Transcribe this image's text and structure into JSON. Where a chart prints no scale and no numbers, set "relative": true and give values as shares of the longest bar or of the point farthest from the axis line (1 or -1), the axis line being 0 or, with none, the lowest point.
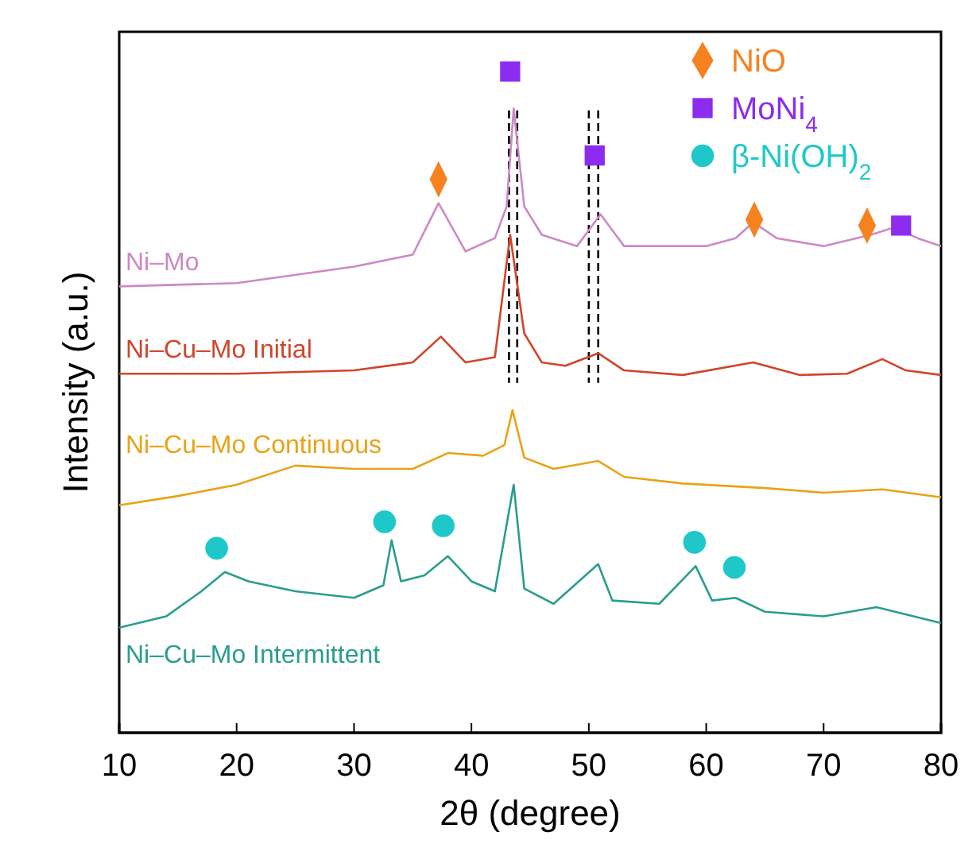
{
  "chart_data": {
    "type": "line",
    "relative": true,
    "xlabel": "2θ (degree)",
    "ylabel": "Intensity (a.u.)",
    "xlim": [
      10,
      80
    ],
    "xticks": [
      10,
      20,
      30,
      40,
      50,
      60,
      70,
      80
    ],
    "legend": "top right",
    "grid": false,
    "series": [
      {
        "name": "Ni–Mo",
        "color": "#cc8ac4",
        "x": [
          10,
          20,
          30,
          35,
          37.2,
          39.5,
          42,
          43,
          43.6,
          44.5,
          46,
          49,
          51,
          53,
          60,
          62.5,
          64,
          66,
          70,
          74,
          76,
          78,
          80
        ],
        "values": [
          0.675,
          0.68,
          0.705,
          0.723,
          0.801,
          0.728,
          0.748,
          0.796,
          0.944,
          0.796,
          0.753,
          0.736,
          0.784,
          0.736,
          0.736,
          0.748,
          0.772,
          0.748,
          0.736,
          0.753,
          0.764,
          0.748,
          0.736
        ]
      },
      {
        "name": "Ni–Cu–Mo Initial",
        "color": "#d0452a",
        "x": [
          10,
          20,
          30,
          35,
          37.4,
          39.5,
          42,
          43.3,
          44.5,
          46,
          48,
          50.8,
          53,
          58,
          64,
          68,
          72,
          75,
          77,
          80
        ],
        "values": [
          0.543,
          0.543,
          0.548,
          0.56,
          0.599,
          0.56,
          0.568,
          0.753,
          0.604,
          0.56,
          0.555,
          0.574,
          0.548,
          0.541,
          0.56,
          0.541,
          0.543,
          0.565,
          0.548,
          0.541
        ]
      },
      {
        "name": "Ni–Cu–Mo Continuous",
        "color": "#e8a317",
        "x": [
          10,
          15,
          20,
          25,
          30,
          35,
          38,
          41,
          42.8,
          43.5,
          44.5,
          47,
          50.8,
          53,
          58,
          65,
          70,
          75,
          80
        ],
        "values": [
          0.344,
          0.358,
          0.375,
          0.404,
          0.399,
          0.399,
          0.423,
          0.419,
          0.435,
          0.488,
          0.416,
          0.399,
          0.411,
          0.387,
          0.377,
          0.37,
          0.363,
          0.368,
          0.356
        ]
      },
      {
        "name": "Ni–Cu–Mo Intermittent",
        "color": "#2a9d8f",
        "x": [
          10,
          14,
          17,
          19,
          21,
          25,
          30,
          32.5,
          33.2,
          34,
          36,
          38,
          40,
          42,
          43.6,
          44.5,
          47,
          50.8,
          52,
          56,
          59.1,
          60.5,
          62.5,
          65,
          70,
          74.5,
          80
        ],
        "values": [
          0.159,
          0.176,
          0.214,
          0.243,
          0.229,
          0.214,
          0.204,
          0.223,
          0.291,
          0.229,
          0.238,
          0.267,
          0.229,
          0.214,
          0.375,
          0.218,
          0.195,
          0.255,
          0.2,
          0.195,
          0.252,
          0.2,
          0.204,
          0.183,
          0.176,
          0.19,
          0.166
        ]
      },
      {
        "name": "NiO",
        "type": "scatter",
        "marker": "diamond",
        "color": "#f5821f",
        "x": [
          37.2,
          64.1,
          73.7
        ],
        "values": [
          0.837,
          0.776,
          0.767
        ]
      },
      {
        "name": "MoNi$_{4}$",
        "type": "scatter",
        "marker": "square",
        "color": "#8b2cf0",
        "x": [
          43.3,
          50.5,
          76.6
        ],
        "values": [
          1.0,
          0.873,
          0.767
        ]
      },
      {
        "name": "β-Ni(OH)$_{2}$",
        "type": "scatter",
        "marker": "circle",
        "color": "#1fc8c8",
        "x": [
          18.3,
          32.6,
          37.6,
          59.0,
          62.4
        ],
        "values": [
          0.279,
          0.319,
          0.313,
          0.288,
          0.25
        ]
      }
    ],
    "ref_lines": [
      {
        "axis": "x",
        "value": 43.2,
        "line_style": "dashed",
        "color": "#000000"
      },
      {
        "axis": "x",
        "value": 43.9,
        "line_style": "dashed",
        "color": "#000000"
      },
      {
        "axis": "x",
        "value": 50.0,
        "line_style": "dashed",
        "color": "#000000"
      },
      {
        "axis": "x",
        "value": 50.8,
        "line_style": "dashed",
        "color": "#000000"
      }
    ]
  }
}
